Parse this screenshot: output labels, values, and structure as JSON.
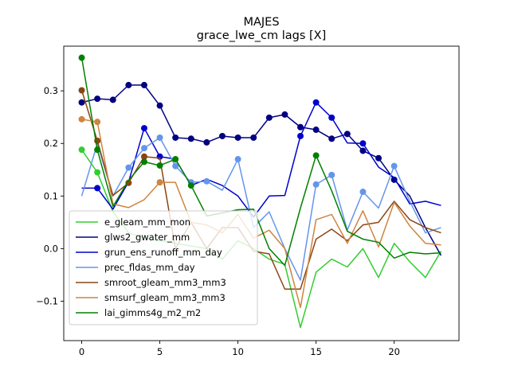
{
  "chart_data": {
    "type": "line",
    "title": "MAJES",
    "subtitle": "grace_lwe_cm lags [X]",
    "xlabel": "",
    "ylabel": "",
    "xlim": [
      -1.15,
      24.15
    ],
    "ylim": [
      -0.175,
      0.385
    ],
    "xticks": [
      0,
      5,
      10,
      15,
      20
    ],
    "yticks": [
      -0.1,
      0.0,
      0.1,
      0.2,
      0.3
    ],
    "ytick_labels": [
      "−0.1",
      "0.0",
      "0.1",
      "0.2",
      "0.3"
    ],
    "grid": false,
    "legend_position": "lower-left",
    "x": [
      0,
      1,
      2,
      3,
      4,
      5,
      6,
      7,
      8,
      9,
      10,
      11,
      12,
      13,
      14,
      15,
      16,
      17,
      18,
      19,
      20,
      21,
      22,
      23
    ],
    "series": [
      {
        "name": "e_gleam_mm_mon",
        "color": "#32cd32",
        "values": [
          0.188,
          0.145,
          0.07,
          0.03,
          0.02,
          0.015,
          0.01,
          0.005,
          0.0,
          -0.02,
          0.015,
          0.0,
          -0.02,
          -0.03,
          -0.15,
          -0.045,
          -0.02,
          -0.035,
          0.0,
          -0.055,
          0.01,
          -0.025,
          -0.055,
          -0.005
        ],
        "markers": [
          0,
          1
        ]
      },
      {
        "name": "glws2_gwater_mm",
        "color": "#000080",
        "values": [
          0.278,
          0.285,
          0.283,
          0.311,
          0.311,
          0.272,
          0.211,
          0.209,
          0.202,
          0.214,
          0.211,
          0.211,
          0.249,
          0.255,
          0.231,
          0.226,
          0.209,
          0.218,
          0.186,
          0.172,
          0.131,
          0.1,
          0.04,
          -0.013
        ],
        "markers": [
          0,
          1,
          2,
          3,
          4,
          5,
          6,
          7,
          8,
          9,
          10,
          11,
          12,
          13,
          14,
          15,
          16,
          17,
          18,
          19,
          20
        ]
      },
      {
        "name": "grun_ens_runoff_mm_day",
        "color": "#0000cd",
        "values": [
          0.115,
          0.115,
          0.075,
          0.127,
          0.229,
          0.175,
          0.17,
          0.12,
          0.132,
          0.12,
          0.1,
          0.06,
          0.1,
          0.101,
          0.214,
          0.278,
          0.249,
          0.201,
          0.2,
          0.155,
          0.135,
          0.085,
          0.09,
          0.082
        ],
        "markers": [
          1,
          4,
          5,
          14,
          15,
          16,
          18
        ]
      },
      {
        "name": "prec_fldas_mm_day",
        "color": "#6495ed",
        "values": [
          0.1,
          0.2,
          0.1,
          0.154,
          0.191,
          0.211,
          0.157,
          0.126,
          0.128,
          0.111,
          0.17,
          0.04,
          0.07,
          0.0,
          -0.06,
          0.122,
          0.14,
          0.035,
          0.108,
          0.077,
          0.157,
          0.09,
          0.03,
          0.04
        ],
        "markers": [
          3,
          4,
          5,
          6,
          7,
          8,
          10,
          15,
          16,
          18,
          20
        ]
      },
      {
        "name": "smroot_gleam_mm3_mm3",
        "color": "#8b4513",
        "values": [
          0.301,
          0.205,
          0.101,
          0.125,
          0.175,
          0.172,
          0.0,
          0.05,
          0.0,
          0.04,
          0.04,
          -0.005,
          -0.01,
          -0.077,
          -0.077,
          0.018,
          0.037,
          0.015,
          0.045,
          0.05,
          0.09,
          0.055,
          0.04,
          0.03
        ],
        "markers": [
          0,
          1,
          3,
          4
        ]
      },
      {
        "name": "smsurf_gleam_mm3_mm3",
        "color": "#cd853f",
        "values": [
          0.246,
          0.241,
          0.085,
          0.078,
          0.093,
          0.126,
          0.126,
          0.05,
          0.045,
          0.03,
          0.065,
          0.02,
          0.035,
          0.0,
          -0.112,
          0.055,
          0.065,
          0.01,
          0.072,
          0.003,
          0.088,
          0.043,
          0.01,
          0.007
        ],
        "markers": [
          0,
          1,
          5
        ]
      },
      {
        "name": "lai_gimms4g_m2_m2",
        "color": "#008000",
        "values": [
          0.363,
          0.188,
          0.08,
          0.13,
          0.165,
          0.158,
          0.17,
          0.12,
          0.062,
          0.068,
          0.074,
          0.075,
          0.0,
          -0.032,
          0.077,
          0.177,
          0.11,
          0.033,
          0.018,
          0.012,
          -0.018,
          -0.007,
          -0.01,
          -0.008
        ],
        "markers": [
          0,
          1,
          4,
          5,
          6,
          7,
          15
        ]
      }
    ]
  }
}
